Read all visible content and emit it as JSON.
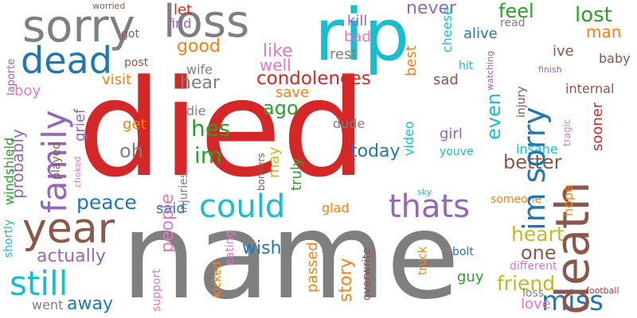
{
  "words": [
    {
      "text": "died",
      "color": "#d62728"
    },
    {
      "text": "name",
      "color": "#7f7f7f"
    },
    {
      "text": "death",
      "color": "#8c564b"
    },
    {
      "text": "rip",
      "color": "#17becf"
    },
    {
      "text": "sorry",
      "color": "#7f7f7f"
    },
    {
      "text": "loss",
      "color": "#7f7f7f"
    },
    {
      "text": "dead",
      "color": "#1f77b4"
    },
    {
      "text": "year",
      "color": "#8c564b"
    },
    {
      "text": "still",
      "color": "#17becf"
    },
    {
      "text": "family",
      "color": "#9467bd"
    },
    {
      "text": "could",
      "color": "#17becf"
    },
    {
      "text": "thats",
      "color": "#9467bd"
    },
    {
      "text": "im sorry",
      "color": "#1f77b4"
    },
    {
      "text": "miss",
      "color": "#1f77b4"
    },
    {
      "text": "condolences",
      "color": "#d62728"
    },
    {
      "text": "peace",
      "color": "#1f77b4"
    },
    {
      "text": "hes",
      "color": "#2ca02c"
    },
    {
      "text": "im",
      "color": "#2ca02c"
    },
    {
      "text": "heart",
      "color": "#bcbd22"
    },
    {
      "text": "friend",
      "color": "#bcbd22"
    },
    {
      "text": "lost",
      "color": "#2ca02c"
    },
    {
      "text": "feel",
      "color": "#2ca02c"
    },
    {
      "text": "man",
      "color": "#ff7f0e"
    },
    {
      "text": "never",
      "color": "#9467bd"
    },
    {
      "text": "alive",
      "color": "#1f77b4"
    },
    {
      "text": "good",
      "color": "#ff7f0e"
    },
    {
      "text": "like",
      "color": "#e377c2"
    },
    {
      "text": "well",
      "color": "#e377c2"
    },
    {
      "text": "hear",
      "color": "#7f7f7f"
    },
    {
      "text": "visit",
      "color": "#ff7f0e"
    },
    {
      "text": "save",
      "color": "#ff7f0e"
    },
    {
      "text": "ago",
      "color": "#2ca02c"
    },
    {
      "text": "today",
      "color": "#1f77b4"
    },
    {
      "text": "better",
      "color": "#8c564b"
    },
    {
      "text": "even",
      "color": "#17becf"
    },
    {
      "text": "one",
      "color": "#8c564b"
    },
    {
      "text": "actually",
      "color": "#9467bd"
    },
    {
      "text": "away",
      "color": "#1f77b4"
    },
    {
      "text": "people",
      "color": "#e377c2"
    },
    {
      "text": "story",
      "color": "#ff7f0e"
    },
    {
      "text": "wish",
      "color": "#1f77b4"
    },
    {
      "text": "said",
      "color": "#1f77b4"
    },
    {
      "text": "girl",
      "color": "#9467bd"
    },
    {
      "text": "passed",
      "color": "#ff7f0e"
    },
    {
      "text": "love",
      "color": "#e377c2"
    },
    {
      "text": "guy",
      "color": "#2ca02c"
    },
    {
      "text": "probably",
      "color": "#9467bd"
    },
    {
      "text": "grief",
      "color": "#9467bd"
    },
    {
      "text": "oh",
      "color": "#7f7f7f"
    },
    {
      "text": "get",
      "color": "#ff7f0e"
    },
    {
      "text": "may",
      "color": "#bcbd22"
    },
    {
      "text": "truly",
      "color": "#2ca02c"
    },
    {
      "text": "kill",
      "color": "#9467bd"
    },
    {
      "text": "let",
      "color": "#d62728"
    },
    {
      "text": "find",
      "color": "#9467bd"
    },
    {
      "text": "wife",
      "color": "#7f7f7f"
    },
    {
      "text": "got",
      "color": "#8c564b"
    },
    {
      "text": "post",
      "color": "#8c564b"
    },
    {
      "text": "boy",
      "color": "#e377c2"
    },
    {
      "text": "bad",
      "color": "#e377c2"
    },
    {
      "text": "rest",
      "color": "#7f7f7f"
    },
    {
      "text": "best",
      "color": "#ff7f0e"
    },
    {
      "text": "cheese",
      "color": "#17becf"
    },
    {
      "text": "read",
      "color": "#7f7f7f"
    },
    {
      "text": "watching",
      "color": "#9467bd"
    },
    {
      "text": "hit",
      "color": "#17becf"
    },
    {
      "text": "sad",
      "color": "#8c564b"
    },
    {
      "text": "ive",
      "color": "#8c564b"
    },
    {
      "text": "injury",
      "color": "#8c564b"
    },
    {
      "text": "baby",
      "color": "#8c564b"
    },
    {
      "text": "finish",
      "color": "#9467bd"
    },
    {
      "text": "internal",
      "color": "#8c564b"
    },
    {
      "text": "tragic",
      "color": "#e377c2"
    },
    {
      "text": "insane",
      "color": "#17becf"
    },
    {
      "text": "sooner",
      "color": "#d62728"
    },
    {
      "text": "hope",
      "color": "#ff7f0e"
    },
    {
      "text": "someone",
      "color": "#ff7f0e"
    },
    {
      "text": "video",
      "color": "#17becf"
    },
    {
      "text": "youve",
      "color": "#17becf"
    },
    {
      "text": "dude",
      "color": "#7f7f7f"
    },
    {
      "text": "bonkers",
      "color": "#8c564b"
    },
    {
      "text": "die",
      "color": "#7f7f7f"
    },
    {
      "text": "injuries",
      "color": "#7f7f7f"
    },
    {
      "text": "glad",
      "color": "#ff7f0e"
    },
    {
      "text": "sky",
      "color": "#17becf"
    },
    {
      "text": "bolt",
      "color": "#1f77b4"
    },
    {
      "text": "truck",
      "color": "#ff7f0e"
    },
    {
      "text": "overwrite",
      "color": "#8c564b"
    },
    {
      "text": "different",
      "color": "#e377c2"
    },
    {
      "text": "football",
      "color": "#d62728"
    },
    {
      "text": "kicked",
      "color": "#ff7f0e"
    },
    {
      "text": "eating",
      "color": "#e377c2"
    },
    {
      "text": "support",
      "color": "#e377c2"
    },
    {
      "text": "went",
      "color": "#7f7f7f"
    },
    {
      "text": "shortly",
      "color": "#17becf"
    },
    {
      "text": "windshield",
      "color": "#2ca02c"
    },
    {
      "text": "played",
      "color": "#8c564b"
    },
    {
      "text": "laporte",
      "color": "#9467bd"
    },
    {
      "text": "worried",
      "color": "#8c564b"
    },
    {
      "text": "choked",
      "color": "#e377c2"
    }
  ]
}
